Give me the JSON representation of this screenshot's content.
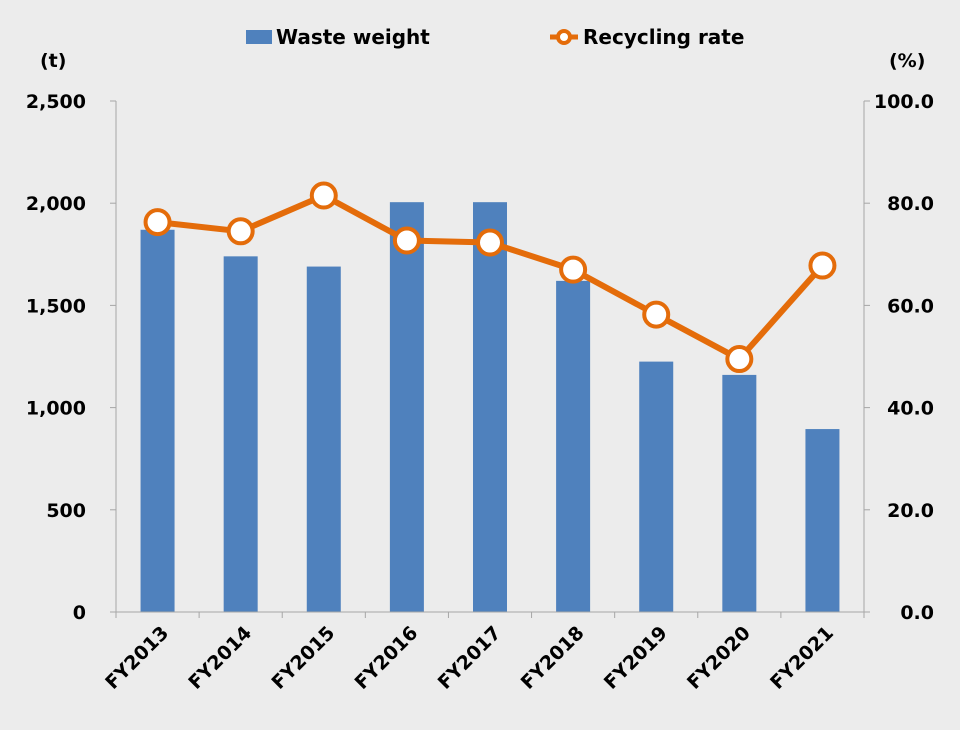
{
  "chart_data": {
    "type": "bar",
    "categories": [
      "FY2013",
      "FY2014",
      "FY2015",
      "FY2016",
      "FY2017",
      "FY2018",
      "FY2019",
      "FY2020",
      "FY2021"
    ],
    "series": [
      {
        "name": "Waste weight",
        "type": "bar",
        "axis": "left",
        "color": "#4f81bd",
        "values": [
          1870,
          1740,
          1690,
          2005,
          2005,
          1620,
          1225,
          1160,
          895
        ]
      },
      {
        "name": "Recycling rate",
        "type": "line",
        "axis": "right",
        "color": "#e46c0a",
        "values": [
          76.3,
          74.5,
          81.5,
          72.7,
          72.3,
          67.0,
          58.2,
          49.5,
          67.8
        ]
      }
    ],
    "left_axis": {
      "unit": "(t)",
      "ylim": [
        0,
        2500
      ],
      "ticks": [
        0,
        500,
        1000,
        1500,
        2000,
        2500
      ],
      "tick_labels": [
        "0",
        "500",
        "1,000",
        "1,500",
        "2,000",
        "2,500"
      ]
    },
    "right_axis": {
      "unit": "(%)",
      "ylim": [
        0,
        100
      ],
      "ticks": [
        0,
        20,
        40,
        60,
        80,
        100
      ],
      "tick_labels": [
        "0.0",
        "20.0",
        "40.0",
        "60.0",
        "80.0",
        "100.0"
      ]
    },
    "legend_position": "top-center",
    "grid": false
  }
}
